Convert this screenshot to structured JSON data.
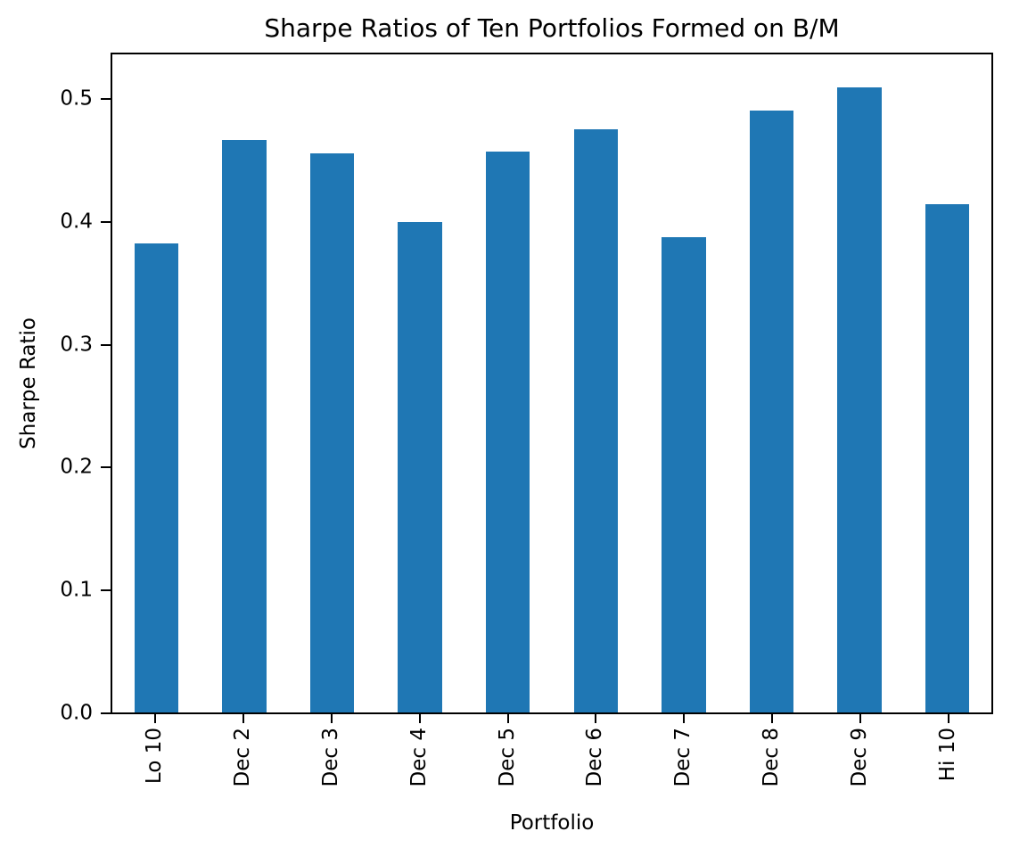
{
  "chart_data": {
    "type": "bar",
    "title": "Sharpe Ratios of Ten Portfolios Formed on B/M",
    "xlabel": "Portfolio",
    "ylabel": "Sharpe Ratio",
    "categories": [
      "Lo 10",
      "Dec 2",
      "Dec 3",
      "Dec 4",
      "Dec 5",
      "Dec 6",
      "Dec 7",
      "Dec 8",
      "Dec 9",
      "Hi 10"
    ],
    "values": [
      0.383,
      0.467,
      0.456,
      0.4,
      0.458,
      0.476,
      0.388,
      0.491,
      0.51,
      0.415
    ],
    "yticks": [
      0.0,
      0.1,
      0.2,
      0.3,
      0.4,
      0.5
    ],
    "ytick_labels": [
      "0.0",
      "0.1",
      "0.2",
      "0.3",
      "0.4",
      "0.5"
    ],
    "ylim": [
      0,
      0.537
    ],
    "bar_width_frac": 0.5,
    "grid": false,
    "legend": null,
    "colors": {
      "bar": "#1f77b4",
      "background": "#ffffff",
      "text": "#000000",
      "spine": "#000000"
    }
  }
}
